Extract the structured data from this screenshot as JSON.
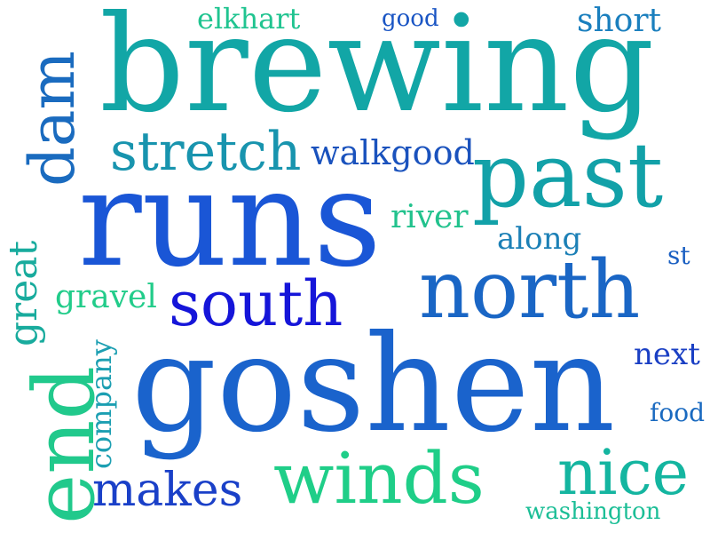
{
  "word_cloud": {
    "words": [
      {
        "text": "brewing",
        "color": "#12a6a6"
      },
      {
        "text": "runs",
        "color": "#1a56d6"
      },
      {
        "text": "goshen",
        "color": "#1a63cc"
      },
      {
        "text": "past",
        "color": "#12a1a8"
      },
      {
        "text": "north",
        "color": "#1a66c5"
      },
      {
        "text": "south",
        "color": "#1515d9"
      },
      {
        "text": "winds",
        "color": "#1fce88"
      },
      {
        "text": "end",
        "color": "#21c98c"
      },
      {
        "text": "nice",
        "color": "#14b5a0"
      },
      {
        "text": "makes",
        "color": "#1a40c8"
      },
      {
        "text": "dam",
        "color": "#1a6bbf"
      },
      {
        "text": "stretch",
        "color": "#1894ae"
      },
      {
        "text": "great",
        "color": "#18ab9d"
      },
      {
        "text": "walkgood",
        "color": "#1a52bd"
      },
      {
        "text": "company",
        "color": "#1c9fb2"
      },
      {
        "text": "gravel",
        "color": "#22cc8a"
      },
      {
        "text": "river",
        "color": "#22c28d"
      },
      {
        "text": "along",
        "color": "#1c80b6"
      },
      {
        "text": "elkhart",
        "color": "#20c490"
      },
      {
        "text": "short",
        "color": "#1a7fbe"
      },
      {
        "text": "good",
        "color": "#1a55c4"
      },
      {
        "text": "next",
        "color": "#1a3fc4"
      },
      {
        "text": "food",
        "color": "#1a6ac0"
      },
      {
        "text": "washington",
        "color": "#1bbe96"
      },
      {
        "text": "st",
        "color": "#1a5fc2"
      }
    ]
  }
}
